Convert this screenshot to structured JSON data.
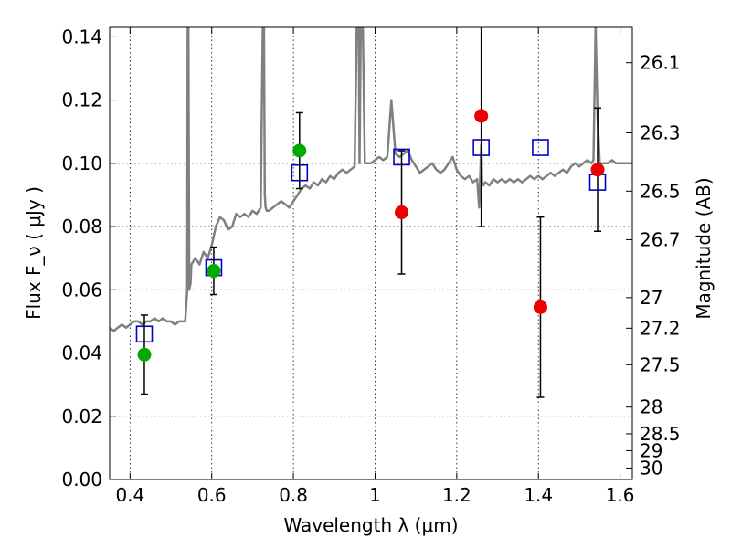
{
  "chart_data": {
    "type": "scatter",
    "xlabel": "Wavelength  λ (μm)",
    "ylabel": "Flux  F_ν  ( μJy )",
    "ylabel_right": "Magnitude (AB)",
    "xlim": [
      0.35,
      1.63
    ],
    "ylim": [
      0.0,
      0.143
    ],
    "grid": true,
    "x_ticks": [
      0.4,
      0.6,
      0.8,
      1.0,
      1.2,
      1.4,
      1.6
    ],
    "x_tick_labels": [
      "0.4",
      "0.6",
      "0.8",
      "1",
      "1.2",
      "1.4",
      "1.6"
    ],
    "y_ticks": [
      0.0,
      0.02,
      0.04,
      0.06,
      0.08,
      0.1,
      0.12,
      0.14
    ],
    "y_tick_labels": [
      "0.00",
      "0.02",
      "0.04",
      "0.06",
      "0.08",
      "0.10",
      "0.12",
      "0.14"
    ],
    "right_axis": {
      "type": "ab-magnitude",
      "ticks": [
        26.1,
        26.3,
        26.5,
        26.7,
        27,
        27.2,
        27.5,
        28,
        28.5,
        29,
        30
      ],
      "tick_labels": [
        "26.1",
        "26.3",
        "26.5",
        "26.7",
        "27",
        "27.2",
        "27.5",
        "28",
        "28.5",
        "29",
        "30"
      ]
    },
    "series": [
      {
        "kind": "spectrum-line",
        "color": "#808080",
        "x": [
          0.35,
          0.36,
          0.37,
          0.38,
          0.39,
          0.4,
          0.41,
          0.42,
          0.43,
          0.44,
          0.45,
          0.46,
          0.47,
          0.48,
          0.49,
          0.5,
          0.51,
          0.52,
          0.53,
          0.535,
          0.54,
          0.541,
          0.543,
          0.545,
          0.548,
          0.55,
          0.56,
          0.57,
          0.58,
          0.59,
          0.6,
          0.61,
          0.62,
          0.63,
          0.64,
          0.65,
          0.66,
          0.67,
          0.68,
          0.69,
          0.7,
          0.71,
          0.72,
          0.725,
          0.728,
          0.73,
          0.732,
          0.735,
          0.74,
          0.75,
          0.76,
          0.77,
          0.78,
          0.79,
          0.8,
          0.81,
          0.82,
          0.83,
          0.84,
          0.85,
          0.86,
          0.87,
          0.88,
          0.89,
          0.9,
          0.91,
          0.92,
          0.93,
          0.94,
          0.95,
          0.955,
          0.958,
          0.96,
          0.962,
          0.965,
          0.97,
          0.975,
          0.98,
          0.99,
          1.0,
          1.01,
          1.02,
          1.03,
          1.04,
          1.05,
          1.06,
          1.07,
          1.08,
          1.09,
          1.1,
          1.11,
          1.12,
          1.13,
          1.14,
          1.15,
          1.16,
          1.17,
          1.18,
          1.19,
          1.2,
          1.21,
          1.22,
          1.23,
          1.24,
          1.25,
          1.255,
          1.26,
          1.262,
          1.265,
          1.27,
          1.28,
          1.29,
          1.3,
          1.31,
          1.32,
          1.33,
          1.34,
          1.35,
          1.36,
          1.37,
          1.38,
          1.39,
          1.4,
          1.41,
          1.42,
          1.43,
          1.44,
          1.45,
          1.46,
          1.47,
          1.48,
          1.49,
          1.5,
          1.51,
          1.52,
          1.53,
          1.535,
          1.54,
          1.545,
          1.55,
          1.56,
          1.57,
          1.58,
          1.59,
          1.6,
          1.61,
          1.62,
          1.63
        ],
        "y": [
          0.048,
          0.047,
          0.048,
          0.049,
          0.048,
          0.049,
          0.05,
          0.05,
          0.049,
          0.05,
          0.05,
          0.051,
          0.05,
          0.051,
          0.05,
          0.05,
          0.049,
          0.05,
          0.05,
          0.05,
          0.06,
          0.143,
          0.143,
          0.06,
          0.062,
          0.068,
          0.07,
          0.068,
          0.072,
          0.07,
          0.074,
          0.08,
          0.083,
          0.082,
          0.079,
          0.08,
          0.084,
          0.083,
          0.084,
          0.083,
          0.085,
          0.084,
          0.086,
          0.143,
          0.143,
          0.09,
          0.086,
          0.085,
          0.085,
          0.086,
          0.087,
          0.088,
          0.087,
          0.086,
          0.088,
          0.09,
          0.092,
          0.093,
          0.092,
          0.094,
          0.093,
          0.095,
          0.094,
          0.096,
          0.095,
          0.097,
          0.098,
          0.097,
          0.098,
          0.099,
          0.143,
          0.143,
          0.143,
          0.1,
          0.143,
          0.143,
          0.1,
          0.1,
          0.1,
          0.101,
          0.102,
          0.101,
          0.102,
          0.12,
          0.103,
          0.102,
          0.103,
          0.104,
          0.101,
          0.099,
          0.097,
          0.098,
          0.099,
          0.1,
          0.098,
          0.097,
          0.098,
          0.1,
          0.102,
          0.098,
          0.096,
          0.095,
          0.096,
          0.094,
          0.095,
          0.086,
          0.106,
          0.094,
          0.093,
          0.094,
          0.093,
          0.095,
          0.094,
          0.095,
          0.094,
          0.095,
          0.094,
          0.095,
          0.094,
          0.095,
          0.096,
          0.095,
          0.096,
          0.095,
          0.096,
          0.097,
          0.096,
          0.097,
          0.098,
          0.097,
          0.099,
          0.1,
          0.099,
          0.1,
          0.101,
          0.1,
          0.101,
          0.143,
          0.115,
          0.1,
          0.1,
          0.1,
          0.101,
          0.1,
          0.1,
          0.1,
          0.1,
          0.1
        ]
      },
      {
        "kind": "model-squares",
        "color": "#0000cc",
        "x": [
          0.435,
          0.605,
          0.815,
          1.065,
          1.26,
          1.405,
          1.545
        ],
        "y": [
          0.046,
          0.067,
          0.097,
          0.102,
          0.105,
          0.105,
          0.094
        ]
      },
      {
        "kind": "green-detections",
        "color": "#00aa00",
        "x": [
          0.435,
          0.605,
          0.815
        ],
        "y": [
          0.0395,
          0.066,
          0.104
        ],
        "err": [
          [
            0.0125,
            0.0125
          ],
          [
            0.0075,
            0.0075
          ],
          [
            0.012,
            0.012
          ]
        ]
      },
      {
        "kind": "red-detections",
        "color": "#ee0000",
        "x": [
          1.065,
          1.26,
          1.405,
          1.545
        ],
        "y": [
          0.0845,
          0.115,
          0.0545,
          0.098
        ],
        "err": [
          [
            0.0195,
            0.0195
          ],
          [
            0.035,
            0.035
          ],
          [
            0.0285,
            0.0285
          ],
          [
            0.0195,
            0.0195
          ]
        ]
      }
    ]
  }
}
